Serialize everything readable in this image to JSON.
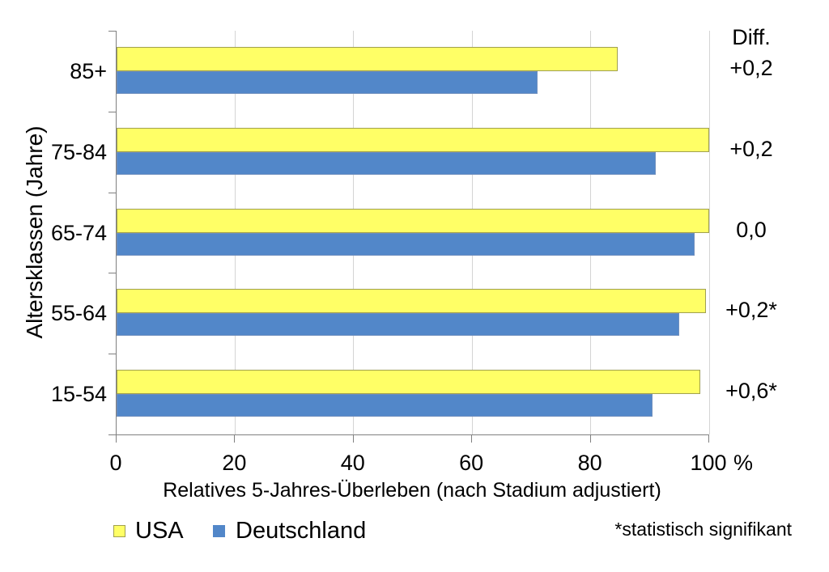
{
  "chart_data": {
    "type": "bar",
    "orientation": "horizontal",
    "title": "",
    "xlabel": "Relatives 5-Jahres-Überleben (nach Stadium adjustiert)",
    "ylabel": "Altersklassen (Jahre)",
    "x_unit": "%",
    "xlim": [
      0,
      100
    ],
    "grid": "vertical-light-gray",
    "legend_position": "bottom",
    "categories": [
      "85+",
      "75-84",
      "65-74",
      "55-64",
      "15-54"
    ],
    "series": [
      {
        "name": "USA",
        "color": "#FFFF66",
        "border_color": "#A0A050",
        "values": [
          84.5,
          100,
          100,
          99.5,
          98.5
        ]
      },
      {
        "name": "Deutschland",
        "color": "#5287C9",
        "border_color": "#6F8FBE",
        "values": [
          71,
          91,
          97.5,
          95,
          90.5
        ]
      }
    ],
    "x_ticks": [
      0,
      20,
      40,
      60,
      80,
      100
    ],
    "x_tick_labels": [
      "0",
      "20",
      "40",
      "60",
      "80",
      "100"
    ],
    "diff_header": "Diff.",
    "diff_values": [
      "+0,2",
      "+0,2",
      "0,0",
      "+0,2*",
      "+0,6*"
    ],
    "footnote": "*statistisch signifikant"
  }
}
